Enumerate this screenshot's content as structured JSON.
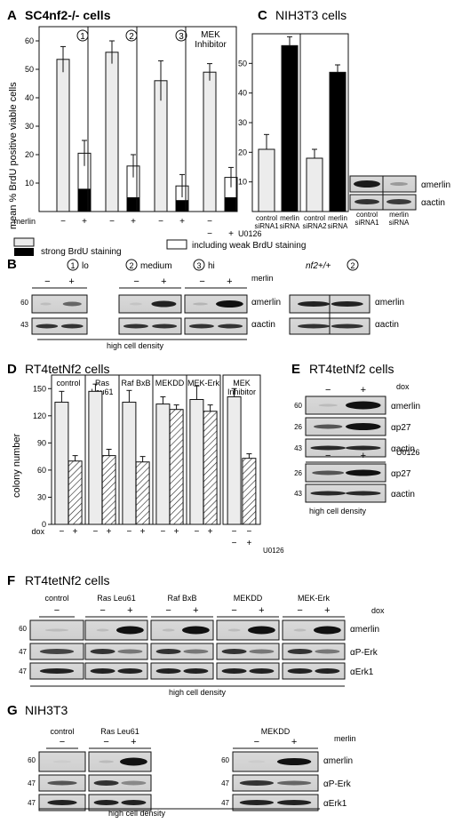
{
  "panelA": {
    "letter": "A",
    "title": "SC4nf2-/- cells",
    "ylabel": "mean % BrdU positive viable cells",
    "groups": [
      "1",
      "2",
      "3",
      "MEK Inhibitor"
    ],
    "row_label": "merlin",
    "treatment": "U0126",
    "yticks": [
      "60",
      "50",
      "40",
      "30",
      "20",
      "10"
    ],
    "legend_strong": "strong BrdU staining",
    "legend_weak": "including weak BrdU staining"
  },
  "panelB": {
    "letter": "B",
    "lanes": [
      "lo",
      "medium",
      "hi"
    ],
    "nums": [
      "1",
      "2",
      "3"
    ],
    "wt": "nf2+/+",
    "labels": [
      "αmerlin",
      "αactin"
    ],
    "mw": [
      "60",
      "43"
    ],
    "merlin": "merlin",
    "note": "high cell density"
  },
  "panelC": {
    "letter": "C",
    "title": "NIH3T3 cells",
    "cats": [
      "control siRNA1",
      "merlin siRNA",
      "control siRNA2",
      "merlin siRNA"
    ],
    "blot_cats": [
      "control siRNA1",
      "merlin siRNA"
    ],
    "labels": [
      "αmerlin",
      "αactin"
    ],
    "yticks": [
      "50",
      "40",
      "30",
      "20",
      "10"
    ]
  },
  "panelD": {
    "letter": "D",
    "title": "RT4tetNf2 cells",
    "ylabel": "colony number",
    "groups": [
      "control",
      "Ras Leu61",
      "Raf BxB",
      "MEKDD",
      "MEK-Erk",
      "MEK Inhibitor"
    ],
    "row_label": "dox",
    "treatment": "U0126",
    "yticks": [
      "150",
      "120",
      "90",
      "60",
      "30",
      "0"
    ]
  },
  "panelE": {
    "letter": "E",
    "title": "RT4tetNf2 cells",
    "dox": "dox",
    "treatment": "U0126",
    "labels": [
      "αmerlin",
      "αp27",
      "αactin",
      "αp27",
      "αactin"
    ],
    "mw": [
      "60",
      "26",
      "43",
      "26",
      "43"
    ],
    "note": "high cell density"
  },
  "panelF": {
    "letter": "F",
    "title": "RT4tetNf2 cells",
    "groups": [
      "control",
      "Ras Leu61",
      "Raf BxB",
      "MEKDD",
      "MEK-Erk"
    ],
    "dox": "dox",
    "labels": [
      "αmerlin",
      "αP-Erk",
      "αErk1"
    ],
    "mw": [
      "60",
      "47",
      "47"
    ],
    "note": "high cell density"
  },
  "panelG": {
    "letter": "G",
    "title": "NIH3T3",
    "groups": [
      "control",
      "Ras Leu61",
      "MEKDD"
    ],
    "merlin": "merlin",
    "labels": [
      "αmerlin",
      "αP-Erk",
      "αErk1"
    ],
    "mw": [
      "60",
      "47",
      "47"
    ],
    "note": "high cell density"
  },
  "chart_data": [
    {
      "type": "bar",
      "panel": "A",
      "categories": [
        "1 -",
        "1 +",
        "2 -",
        "2 +",
        "3 -",
        "3 +",
        "MEK -",
        "MEK +"
      ],
      "series": [
        {
          "name": "strong BrdU staining",
          "values": [
            0,
            8,
            0,
            5,
            0,
            4,
            0,
            5
          ]
        },
        {
          "name": "including weak BrdU staining",
          "values": [
            53.5,
            20.5,
            56,
            16,
            46,
            9,
            49,
            12
          ]
        }
      ],
      "errors": [
        4.5,
        4.5,
        4,
        4,
        7,
        4,
        3,
        3.5
      ],
      "ylim": [
        0,
        65
      ]
    },
    {
      "type": "bar",
      "panel": "C",
      "categories": [
        "control siRNA1",
        "merlin siRNA",
        "control siRNA2",
        "merlin siRNA"
      ],
      "values": [
        21,
        56,
        18,
        47
      ],
      "errors": [
        5,
        3,
        3,
        2.5
      ],
      "ylim": [
        0,
        60
      ]
    },
    {
      "type": "bar",
      "panel": "D",
      "categories": [
        "control -",
        "control +",
        "Ras Leu61 -",
        "Ras Leu61 +",
        "Raf BxB -",
        "Raf BxB +",
        "MEKDD -",
        "MEKDD +",
        "MEK-Erk -",
        "MEK-Erk +",
        "MEK Inhibitor -",
        "MEK Inhibitor +"
      ],
      "values": [
        135,
        70,
        147,
        76,
        135,
        69,
        133,
        127,
        138,
        125,
        141,
        73
      ],
      "errors": [
        12,
        6,
        8,
        7,
        13,
        6,
        8,
        5,
        15,
        7,
        9,
        5
      ],
      "ylim": [
        0,
        165
      ]
    }
  ]
}
